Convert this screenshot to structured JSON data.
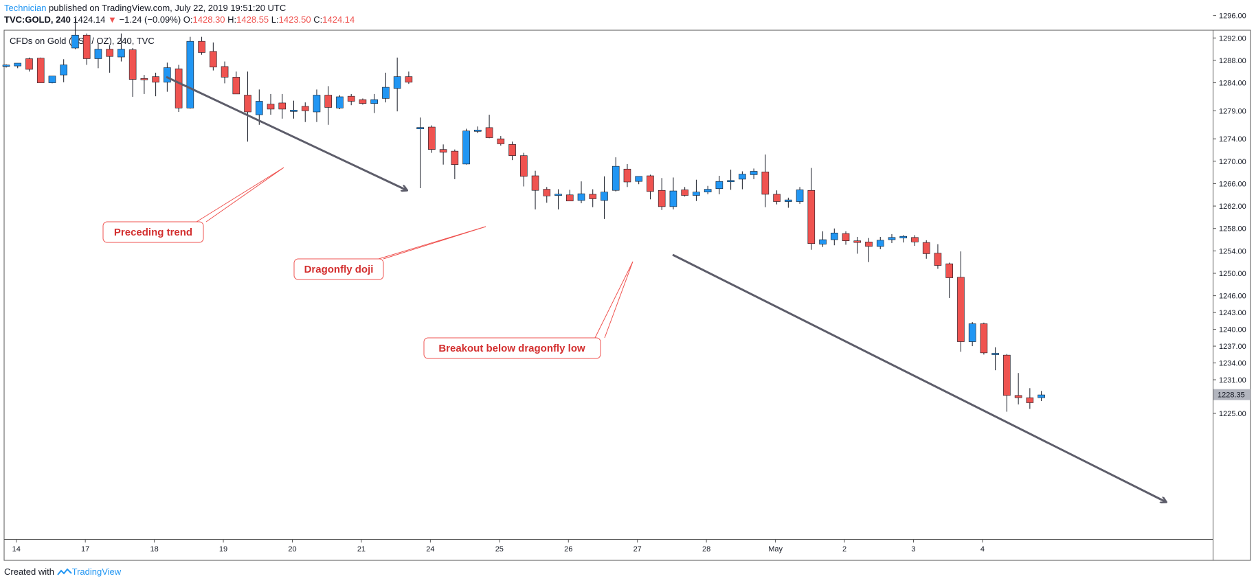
{
  "header": {
    "author": "Technician",
    "published_text": " published on TradingView.com, July 22, 2019 19:51:20 UTC"
  },
  "quote": {
    "symbol": "TVC:GOLD, 240",
    "last": "1424.14",
    "arrow": "▼",
    "change": "−1.24 (−0.09%)",
    "o_label": "O:",
    "o": "1428.30",
    "h_label": "H:",
    "h": "1428.55",
    "l_label": "L:",
    "l": "1423.50",
    "c_label": "C:",
    "c": "1424.14"
  },
  "footer": {
    "prefix": "Created with",
    "brand": "TradingView"
  },
  "colors": {
    "up": "#2196f3",
    "down": "#ef5350",
    "annotation": "#d32f2f",
    "arrow": "#5d5d6a",
    "price_tag": "#b2b5be"
  },
  "chart_data": {
    "type": "candlestick",
    "title": "CFDs on Gold (US$ / OZ), 240, TVC",
    "ylim": [
      1222,
      1298
    ],
    "y_ticks": [
      1225,
      1228.35,
      1231,
      1234,
      1237,
      1240,
      1243,
      1246,
      1250,
      1254,
      1258,
      1262,
      1266,
      1270,
      1274,
      1279,
      1284,
      1288,
      1292,
      1296
    ],
    "y_tick_labels": [
      "1225.00",
      "1228.35",
      "1231.00",
      "1234.00",
      "1237.00",
      "1240.00",
      "1243.00",
      "1246.00",
      "1250.00",
      "1254.00",
      "1258.00",
      "1262.00",
      "1266.00",
      "1270.00",
      "1274.00",
      "1279.00",
      "1284.00",
      "1288.00",
      "1292.00",
      "1296.00"
    ],
    "current_price": 1228.35,
    "current_price_label": "1228.35",
    "x_tick_labels": [
      "14",
      "17",
      "18",
      "19",
      "20",
      "21",
      "24",
      "25",
      "26",
      "27",
      "28",
      "May",
      "2",
      "3",
      "4"
    ],
    "x_tick_index": [
      1,
      7,
      13,
      19,
      25,
      31,
      37,
      43,
      49,
      55,
      61,
      67,
      73,
      79,
      85
    ],
    "candles": [
      {
        "o": 1287.0,
        "h": 1287.3,
        "l": 1286.7,
        "c": 1287.1
      },
      {
        "o": 1287.0,
        "h": 1287.5,
        "l": 1286.6,
        "c": 1287.5
      },
      {
        "o": 1288.3,
        "h": 1288.5,
        "l": 1286.0,
        "c": 1286.4
      },
      {
        "o": 1288.4,
        "h": 1288.5,
        "l": 1284.0,
        "c": 1284.0
      },
      {
        "o": 1284.0,
        "h": 1285.2,
        "l": 1283.9,
        "c": 1285.2
      },
      {
        "o": 1285.4,
        "h": 1288.2,
        "l": 1284.1,
        "c": 1287.2
      },
      {
        "o": 1290.2,
        "h": 1295.5,
        "l": 1290.0,
        "c": 1292.5
      },
      {
        "o": 1292.5,
        "h": 1292.8,
        "l": 1287.2,
        "c": 1288.3
      },
      {
        "o": 1288.3,
        "h": 1291.0,
        "l": 1286.6,
        "c": 1290.0
      },
      {
        "o": 1290.0,
        "h": 1290.6,
        "l": 1285.8,
        "c": 1288.7
      },
      {
        "o": 1288.6,
        "h": 1292.8,
        "l": 1287.8,
        "c": 1290.0
      },
      {
        "o": 1289.9,
        "h": 1290.2,
        "l": 1281.5,
        "c": 1284.6
      },
      {
        "o": 1284.7,
        "h": 1285.4,
        "l": 1282.0,
        "c": 1284.6
      },
      {
        "o": 1285.1,
        "h": 1285.8,
        "l": 1281.6,
        "c": 1284.1
      },
      {
        "o": 1284.1,
        "h": 1287.6,
        "l": 1282.4,
        "c": 1286.7
      },
      {
        "o": 1286.5,
        "h": 1287.2,
        "l": 1278.8,
        "c": 1279.5
      },
      {
        "o": 1279.5,
        "h": 1292.2,
        "l": 1279.4,
        "c": 1291.4
      },
      {
        "o": 1291.4,
        "h": 1292.2,
        "l": 1289.0,
        "c": 1289.4
      },
      {
        "o": 1289.6,
        "h": 1291.2,
        "l": 1286.2,
        "c": 1286.8
      },
      {
        "o": 1286.9,
        "h": 1287.8,
        "l": 1283.9,
        "c": 1285.0
      },
      {
        "o": 1285.0,
        "h": 1286.0,
        "l": 1282.0,
        "c": 1282.0
      },
      {
        "o": 1281.8,
        "h": 1286.0,
        "l": 1273.5,
        "c": 1278.8
      },
      {
        "o": 1278.3,
        "h": 1282.8,
        "l": 1276.5,
        "c": 1280.7
      },
      {
        "o": 1280.2,
        "h": 1282.0,
        "l": 1278.3,
        "c": 1279.3
      },
      {
        "o": 1280.4,
        "h": 1282.0,
        "l": 1277.6,
        "c": 1279.3
      },
      {
        "o": 1279.0,
        "h": 1280.8,
        "l": 1277.6,
        "c": 1279.0
      },
      {
        "o": 1279.8,
        "h": 1280.5,
        "l": 1277.0,
        "c": 1279.0
      },
      {
        "o": 1278.8,
        "h": 1282.8,
        "l": 1277.0,
        "c": 1281.8
      },
      {
        "o": 1281.8,
        "h": 1283.4,
        "l": 1276.5,
        "c": 1279.6
      },
      {
        "o": 1279.5,
        "h": 1281.8,
        "l": 1279.3,
        "c": 1281.5
      },
      {
        "o": 1281.6,
        "h": 1282.0,
        "l": 1280.0,
        "c": 1280.7
      },
      {
        "o": 1281.0,
        "h": 1281.2,
        "l": 1280.1,
        "c": 1280.3
      },
      {
        "o": 1280.3,
        "h": 1282.0,
        "l": 1278.6,
        "c": 1281.0
      },
      {
        "o": 1281.2,
        "h": 1285.8,
        "l": 1280.5,
        "c": 1283.2
      },
      {
        "o": 1283.0,
        "h": 1288.5,
        "l": 1278.9,
        "c": 1285.1
      },
      {
        "o": 1285.1,
        "h": 1286.0,
        "l": 1283.8,
        "c": 1284.1
      },
      {
        "o": 1275.8,
        "h": 1277.8,
        "l": 1265.2,
        "c": 1276.0
      },
      {
        "o": 1276.1,
        "h": 1276.4,
        "l": 1271.5,
        "c": 1272.1
      },
      {
        "o": 1272.1,
        "h": 1273.0,
        "l": 1269.4,
        "c": 1271.6
      },
      {
        "o": 1271.8,
        "h": 1272.1,
        "l": 1266.8,
        "c": 1269.4
      },
      {
        "o": 1269.5,
        "h": 1275.8,
        "l": 1269.4,
        "c": 1275.4
      },
      {
        "o": 1275.4,
        "h": 1276.2,
        "l": 1275.0,
        "c": 1275.5
      },
      {
        "o": 1276.0,
        "h": 1278.3,
        "l": 1274.1,
        "c": 1274.2
      },
      {
        "o": 1274.0,
        "h": 1274.5,
        "l": 1272.8,
        "c": 1273.1
      },
      {
        "o": 1273.0,
        "h": 1273.5,
        "l": 1270.2,
        "c": 1271.0
      },
      {
        "o": 1271.0,
        "h": 1271.5,
        "l": 1265.5,
        "c": 1267.3
      },
      {
        "o": 1267.4,
        "h": 1268.3,
        "l": 1261.4,
        "c": 1264.8
      },
      {
        "o": 1265.0,
        "h": 1265.4,
        "l": 1262.6,
        "c": 1263.8
      },
      {
        "o": 1263.9,
        "h": 1265.0,
        "l": 1261.4,
        "c": 1264.1
      },
      {
        "o": 1264.0,
        "h": 1264.9,
        "l": 1262.9,
        "c": 1262.9
      },
      {
        "o": 1263.0,
        "h": 1266.4,
        "l": 1262.5,
        "c": 1264.2
      },
      {
        "o": 1264.1,
        "h": 1265.0,
        "l": 1261.8,
        "c": 1263.3
      },
      {
        "o": 1263.0,
        "h": 1267.3,
        "l": 1259.7,
        "c": 1264.5
      },
      {
        "o": 1264.8,
        "h": 1270.7,
        "l": 1264.6,
        "c": 1269.1
      },
      {
        "o": 1268.6,
        "h": 1269.5,
        "l": 1265.4,
        "c": 1266.3
      },
      {
        "o": 1266.4,
        "h": 1267.3,
        "l": 1265.9,
        "c": 1267.3
      },
      {
        "o": 1267.4,
        "h": 1267.6,
        "l": 1263.2,
        "c": 1264.6
      },
      {
        "o": 1264.8,
        "h": 1267.0,
        "l": 1261.3,
        "c": 1261.9
      },
      {
        "o": 1261.9,
        "h": 1267.1,
        "l": 1261.4,
        "c": 1264.7
      },
      {
        "o": 1264.9,
        "h": 1265.4,
        "l": 1263.7,
        "c": 1263.9
      },
      {
        "o": 1263.9,
        "h": 1266.7,
        "l": 1262.9,
        "c": 1264.5
      },
      {
        "o": 1264.5,
        "h": 1265.6,
        "l": 1264.1,
        "c": 1265.0
      },
      {
        "o": 1265.1,
        "h": 1267.4,
        "l": 1264.1,
        "c": 1266.4
      },
      {
        "o": 1266.4,
        "h": 1268.5,
        "l": 1264.9,
        "c": 1266.5
      },
      {
        "o": 1266.8,
        "h": 1268.2,
        "l": 1265.0,
        "c": 1267.7
      },
      {
        "o": 1267.6,
        "h": 1268.7,
        "l": 1266.8,
        "c": 1268.2
      },
      {
        "o": 1268.1,
        "h": 1271.2,
        "l": 1261.8,
        "c": 1264.1
      },
      {
        "o": 1264.1,
        "h": 1264.8,
        "l": 1262.3,
        "c": 1262.8
      },
      {
        "o": 1262.8,
        "h": 1263.5,
        "l": 1261.7,
        "c": 1263.1
      },
      {
        "o": 1262.8,
        "h": 1265.4,
        "l": 1262.4,
        "c": 1264.9
      },
      {
        "o": 1264.8,
        "h": 1268.8,
        "l": 1254.2,
        "c": 1255.3
      },
      {
        "o": 1255.2,
        "h": 1257.5,
        "l": 1254.7,
        "c": 1256.0
      },
      {
        "o": 1256.0,
        "h": 1258.0,
        "l": 1255.0,
        "c": 1257.2
      },
      {
        "o": 1257.1,
        "h": 1257.5,
        "l": 1255.1,
        "c": 1255.8
      },
      {
        "o": 1255.8,
        "h": 1256.5,
        "l": 1253.5,
        "c": 1255.5
      },
      {
        "o": 1255.6,
        "h": 1256.3,
        "l": 1252.0,
        "c": 1254.8
      },
      {
        "o": 1254.8,
        "h": 1256.5,
        "l": 1254.3,
        "c": 1255.9
      },
      {
        "o": 1256.0,
        "h": 1257.0,
        "l": 1255.4,
        "c": 1256.4
      },
      {
        "o": 1256.3,
        "h": 1256.8,
        "l": 1255.5,
        "c": 1256.6
      },
      {
        "o": 1256.4,
        "h": 1256.8,
        "l": 1254.9,
        "c": 1255.6
      },
      {
        "o": 1255.5,
        "h": 1255.9,
        "l": 1252.6,
        "c": 1253.5
      },
      {
        "o": 1253.6,
        "h": 1255.2,
        "l": 1250.8,
        "c": 1251.4
      },
      {
        "o": 1251.7,
        "h": 1251.9,
        "l": 1245.6,
        "c": 1249.2
      },
      {
        "o": 1249.3,
        "h": 1253.9,
        "l": 1236.0,
        "c": 1237.8
      },
      {
        "o": 1237.8,
        "h": 1241.3,
        "l": 1237.0,
        "c": 1241.0
      },
      {
        "o": 1241.0,
        "h": 1241.2,
        "l": 1235.5,
        "c": 1235.8
      },
      {
        "o": 1235.6,
        "h": 1236.8,
        "l": 1232.7,
        "c": 1235.6
      },
      {
        "o": 1235.4,
        "h": 1235.6,
        "l": 1225.3,
        "c": 1228.2
      },
      {
        "o": 1228.2,
        "h": 1232.2,
        "l": 1226.6,
        "c": 1227.8
      },
      {
        "o": 1227.8,
        "h": 1229.5,
        "l": 1225.8,
        "c": 1226.9
      },
      {
        "o": 1227.8,
        "h": 1229.0,
        "l": 1227.2,
        "c": 1228.3
      }
    ],
    "annotations": [
      {
        "label": "Preceding trend"
      },
      {
        "label": "Dragonfly doji"
      },
      {
        "label": "Breakout below dragonfly low"
      }
    ]
  }
}
